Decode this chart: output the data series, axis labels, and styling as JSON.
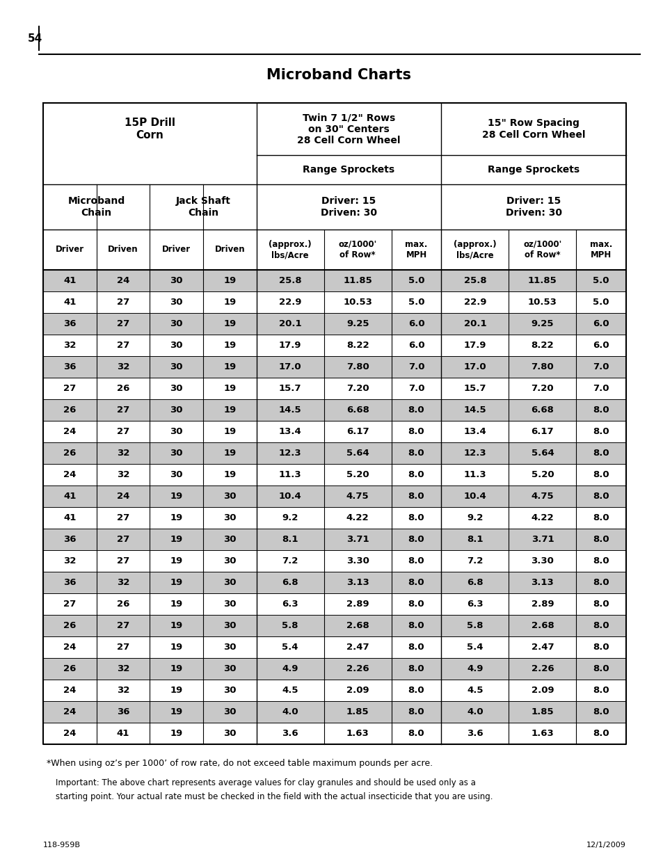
{
  "title": "Microband Charts",
  "page_num": "54",
  "rows": [
    [
      41,
      24,
      30,
      19,
      "25.8",
      "11.85",
      "5.0",
      "25.8",
      "11.85",
      "5.0"
    ],
    [
      41,
      27,
      30,
      19,
      "22.9",
      "10.53",
      "5.0",
      "22.9",
      "10.53",
      "5.0"
    ],
    [
      36,
      27,
      30,
      19,
      "20.1",
      "9.25",
      "6.0",
      "20.1",
      "9.25",
      "6.0"
    ],
    [
      32,
      27,
      30,
      19,
      "17.9",
      "8.22",
      "6.0",
      "17.9",
      "8.22",
      "6.0"
    ],
    [
      36,
      32,
      30,
      19,
      "17.0",
      "7.80",
      "7.0",
      "17.0",
      "7.80",
      "7.0"
    ],
    [
      27,
      26,
      30,
      19,
      "15.7",
      "7.20",
      "7.0",
      "15.7",
      "7.20",
      "7.0"
    ],
    [
      26,
      27,
      30,
      19,
      "14.5",
      "6.68",
      "8.0",
      "14.5",
      "6.68",
      "8.0"
    ],
    [
      24,
      27,
      30,
      19,
      "13.4",
      "6.17",
      "8.0",
      "13.4",
      "6.17",
      "8.0"
    ],
    [
      26,
      32,
      30,
      19,
      "12.3",
      "5.64",
      "8.0",
      "12.3",
      "5.64",
      "8.0"
    ],
    [
      24,
      32,
      30,
      19,
      "11.3",
      "5.20",
      "8.0",
      "11.3",
      "5.20",
      "8.0"
    ],
    [
      41,
      24,
      19,
      30,
      "10.4",
      "4.75",
      "8.0",
      "10.4",
      "4.75",
      "8.0"
    ],
    [
      41,
      27,
      19,
      30,
      "9.2",
      "4.22",
      "8.0",
      "9.2",
      "4.22",
      "8.0"
    ],
    [
      36,
      27,
      19,
      30,
      "8.1",
      "3.71",
      "8.0",
      "8.1",
      "3.71",
      "8.0"
    ],
    [
      32,
      27,
      19,
      30,
      "7.2",
      "3.30",
      "8.0",
      "7.2",
      "3.30",
      "8.0"
    ],
    [
      36,
      32,
      19,
      30,
      "6.8",
      "3.13",
      "8.0",
      "6.8",
      "3.13",
      "8.0"
    ],
    [
      27,
      26,
      19,
      30,
      "6.3",
      "2.89",
      "8.0",
      "6.3",
      "2.89",
      "8.0"
    ],
    [
      26,
      27,
      19,
      30,
      "5.8",
      "2.68",
      "8.0",
      "5.8",
      "2.68",
      "8.0"
    ],
    [
      24,
      27,
      19,
      30,
      "5.4",
      "2.47",
      "8.0",
      "5.4",
      "2.47",
      "8.0"
    ],
    [
      26,
      32,
      19,
      30,
      "4.9",
      "2.26",
      "8.0",
      "4.9",
      "2.26",
      "8.0"
    ],
    [
      24,
      32,
      19,
      30,
      "4.5",
      "2.09",
      "8.0",
      "4.5",
      "2.09",
      "8.0"
    ],
    [
      24,
      36,
      19,
      30,
      "4.0",
      "1.85",
      "8.0",
      "4.0",
      "1.85",
      "8.0"
    ],
    [
      24,
      41,
      19,
      30,
      "3.6",
      "1.63",
      "8.0",
      "3.6",
      "1.63",
      "8.0"
    ]
  ],
  "footer1": "*When using oz’s per 1000’ of row rate, do not exceed table maximum pounds per acre.",
  "footer2_line1": "Important: The above chart represents average values for clay granules and should be used only as a",
  "footer2_line2": "starting point. Your actual rate must be checked in the field with the actual insecticide that you are using.",
  "bottom_left": "118-959B",
  "bottom_right": "12/1/2009",
  "gray_row_color": "#c8c8c8",
  "white_row_color": "#ffffff"
}
